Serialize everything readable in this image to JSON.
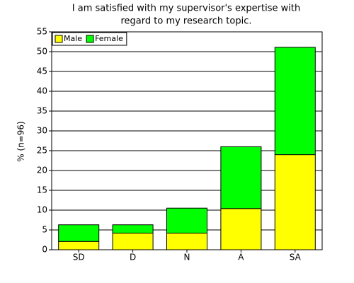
{
  "chart_data": {
    "type": "stacked_bar",
    "title": [
      "I am satisfied with my supervisor's expertise with",
      "regard to my research topic."
    ],
    "y_label": "% (n=96)",
    "categories": [
      "SD",
      "D",
      "N",
      "A",
      "SA"
    ],
    "series": [
      {
        "name": "Male",
        "color": "#ffff00",
        "values": [
          2.1,
          4.2,
          4.2,
          10.4,
          24.0
        ]
      },
      {
        "name": "Female",
        "color": "#00ff00",
        "values": [
          4.2,
          2.1,
          6.3,
          15.6,
          27.1
        ]
      }
    ],
    "ylim": [
      0,
      55
    ],
    "yticks": [
      0,
      5,
      10,
      15,
      20,
      25,
      30,
      35,
      40,
      45,
      50,
      55
    ],
    "grid": true,
    "legend": "top-left"
  }
}
